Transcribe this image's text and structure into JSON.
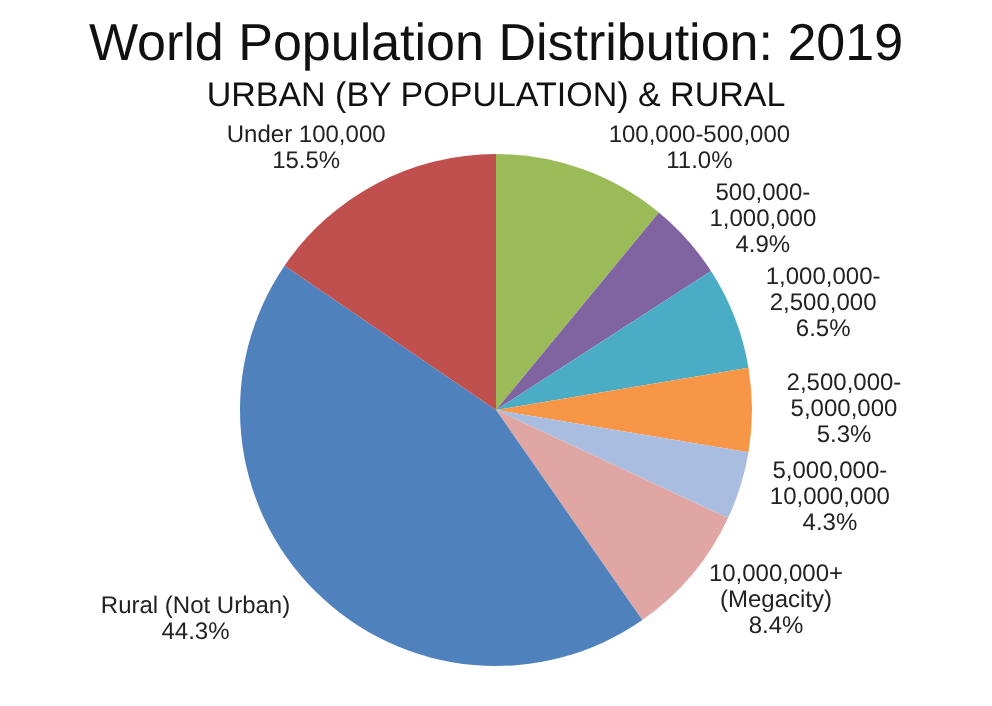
{
  "chart_data": {
    "type": "pie",
    "title": "World Population Distribution: 2019",
    "subtitle": "URBAN (BY POPULATION) & RURAL",
    "categories": [
      "100,000-500,000",
      "500,000-\n1,000,000",
      "1,000,000-\n2,500,000",
      "2,500,000-\n5,000,000",
      "5,000,000-\n10,000,000",
      "10,000,000+\n(Megacity)",
      "Rural (Not Urban)",
      "Under 100,000"
    ],
    "values": [
      11.0,
      4.9,
      6.5,
      5.3,
      4.3,
      8.4,
      44.3,
      15.5
    ],
    "value_labels": [
      "11.0%",
      "4.9%",
      "6.5%",
      "5.3%",
      "4.3%",
      "8.4%",
      "44.3%",
      "15.5%"
    ],
    "colors": [
      "#9bbb59",
      "#8064a2",
      "#4bacc6",
      "#f79646",
      "#a9bde0",
      "#dfa6a4",
      "#4f81bd",
      "#c0504d"
    ]
  }
}
